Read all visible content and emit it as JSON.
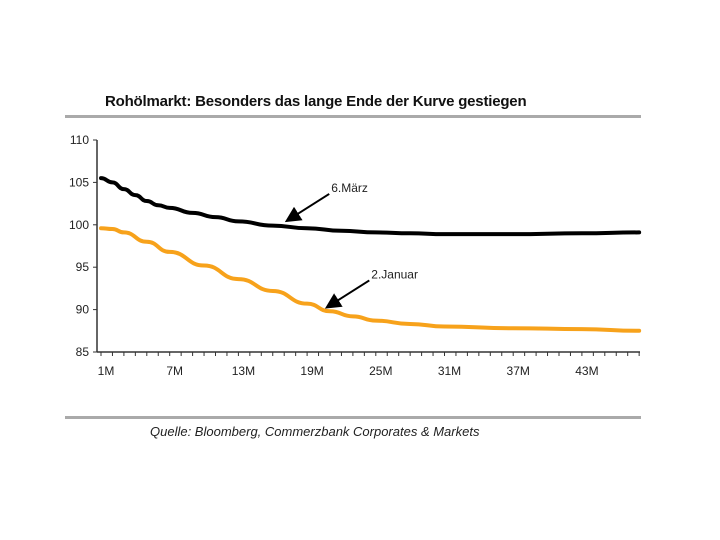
{
  "chart_data": {
    "type": "line",
    "title": "Rohölmarkt: Besonders das lange Ende der Kurve gestiegen",
    "source": "Quelle: Bloomberg, Commerzbank Corporates & Markets",
    "xlabel": "",
    "ylabel": "",
    "ylim": [
      85,
      110
    ],
    "yticks": [
      "85",
      "90",
      "95",
      "100",
      "105",
      "110"
    ],
    "xlim": [
      1,
      48
    ],
    "xticks": [
      {
        "m": 1,
        "label": "1M"
      },
      {
        "m": 7,
        "label": "7M"
      },
      {
        "m": 13,
        "label": "13M"
      },
      {
        "m": 19,
        "label": "19M"
      },
      {
        "m": 25,
        "label": "25M"
      },
      {
        "m": 31,
        "label": "31M"
      },
      {
        "m": 37,
        "label": "37M"
      },
      {
        "m": 43,
        "label": "43M"
      }
    ],
    "grid": false,
    "series": [
      {
        "name": "6.März",
        "color": "#000000",
        "label_at": [
          17,
          100.1
        ],
        "x": [
          1,
          2,
          3,
          4,
          5,
          6,
          7,
          9,
          11,
          13,
          16,
          19,
          22,
          25,
          28,
          31,
          37,
          43,
          48
        ],
        "y": [
          105.5,
          105,
          104.2,
          103.5,
          102.8,
          102.3,
          102,
          101.4,
          100.9,
          100.4,
          99.9,
          99.6,
          99.3,
          99.1,
          99.0,
          98.9,
          98.9,
          99.0,
          99.1
        ]
      },
      {
        "name": "2.Januar",
        "color": "#f7a21b",
        "label_at": [
          20.5,
          89.9
        ],
        "x": [
          1,
          2,
          3,
          5,
          7,
          10,
          13,
          16,
          19,
          21,
          23,
          25,
          28,
          31,
          37,
          43,
          48
        ],
        "y": [
          99.6,
          99.5,
          99.1,
          98,
          96.8,
          95.2,
          93.6,
          92.2,
          90.7,
          89.8,
          89.2,
          88.7,
          88.3,
          88.0,
          87.8,
          87.7,
          87.5
        ]
      }
    ]
  }
}
